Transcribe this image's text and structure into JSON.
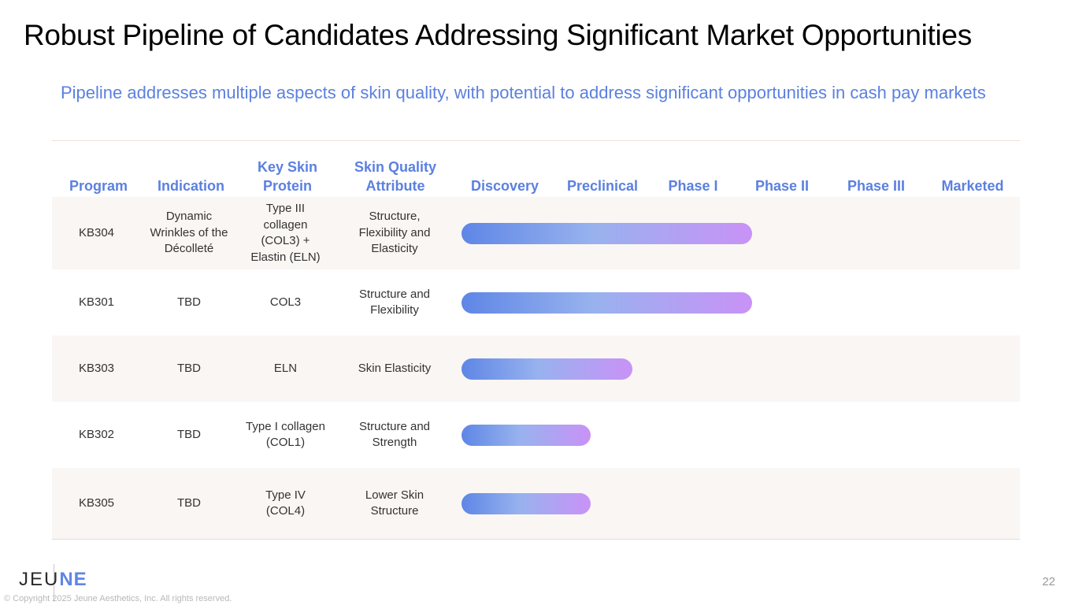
{
  "title": "Robust Pipeline of Candidates Addressing Significant Market Opportunities",
  "subtitle": "Pipeline addresses multiple aspects of skin quality, with potential to address significant opportunities in cash pay markets",
  "headers": {
    "program": "Program",
    "indication": "Indication",
    "key_skin_protein": "Key Skin Protein",
    "skin_quality_attribute": "Skin Quality Attribute",
    "discovery": "Discovery",
    "preclinical": "Preclinical",
    "phase1": "Phase I",
    "phase2": "Phase II",
    "phase3": "Phase III",
    "marketed": "Marketed"
  },
  "stages": [
    "Discovery",
    "Preclinical",
    "Phase I",
    "Phase II",
    "Phase III",
    "Marketed"
  ],
  "programs": [
    {
      "program": "KB304",
      "indication": "Dynamic Wrinkles of the Décolleté",
      "protein": "Type III collagen (COL3) + Elastin (ELN)",
      "attribute": "Structure, Flexibility and Elasticity",
      "progress_stages": 3.1
    },
    {
      "program": "KB301",
      "indication": "TBD",
      "protein": "COL3",
      "attribute": "Structure and Flexibility",
      "progress_stages": 3.1
    },
    {
      "program": "KB303",
      "indication": "TBD",
      "protein": "ELN",
      "attribute": "Skin Elasticity",
      "progress_stages": 1.82
    },
    {
      "program": "KB302",
      "indication": "TBD",
      "protein": "Type I collagen (COL1)",
      "attribute": "Structure and Strength",
      "progress_stages": 1.38
    },
    {
      "program": "KB305",
      "indication": "TBD",
      "protein": "Type IV (COL4)",
      "attribute": "Lower Skin Structure",
      "progress_stages": 1.38
    }
  ],
  "logo": {
    "part1": "JEU",
    "part2": "NE"
  },
  "copyright": "© Copyright 2025 Jeune Aesthetics, Inc. All rights reserved.",
  "page_number": "22",
  "colors": {
    "accent": "#5b80e0",
    "bar_start": "#5e86e6",
    "bar_mid": "#98b2ee",
    "bar_end": "#c992f7",
    "row_shade": "#faf6f3"
  }
}
